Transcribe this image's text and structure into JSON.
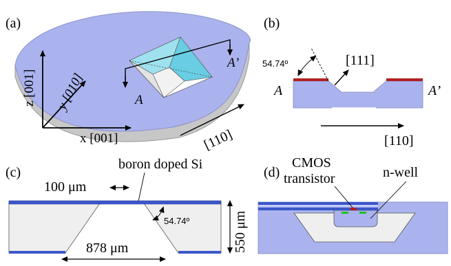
{
  "panels": {
    "a": {
      "label": "(a)",
      "axis_z": "z [001]",
      "axis_y": "y [010]",
      "axis_x": "x [001]",
      "dir_110": "[110]",
      "section_a": "A",
      "section_a_prime": "A’"
    },
    "b": {
      "label": "(b)",
      "angle": "54.74º",
      "dir_111": "[111]",
      "section_a": "A",
      "section_a_prime": "A’",
      "dir_110": "[110]"
    },
    "c": {
      "label": "(c)",
      "boron": "boron doped Si",
      "dim_100": "100 μm",
      "angle": "54.74º",
      "dim_550": "550 μm",
      "dim_878": "878 μm"
    },
    "d": {
      "label": "(d)",
      "cmos_line1": "CMOS",
      "cmos_line2": "transistor",
      "nwell": "n-well"
    }
  },
  "colors": {
    "wafer": "#aab3ee",
    "wafer_light": "#c3c9f4",
    "edge_gray": "#bcbcbc",
    "cavity": "#eeeeee",
    "boron": "#3b57c9",
    "oxide_red": "#b02020",
    "green_doping": "#22c022",
    "pit": "#7fd8ea"
  }
}
